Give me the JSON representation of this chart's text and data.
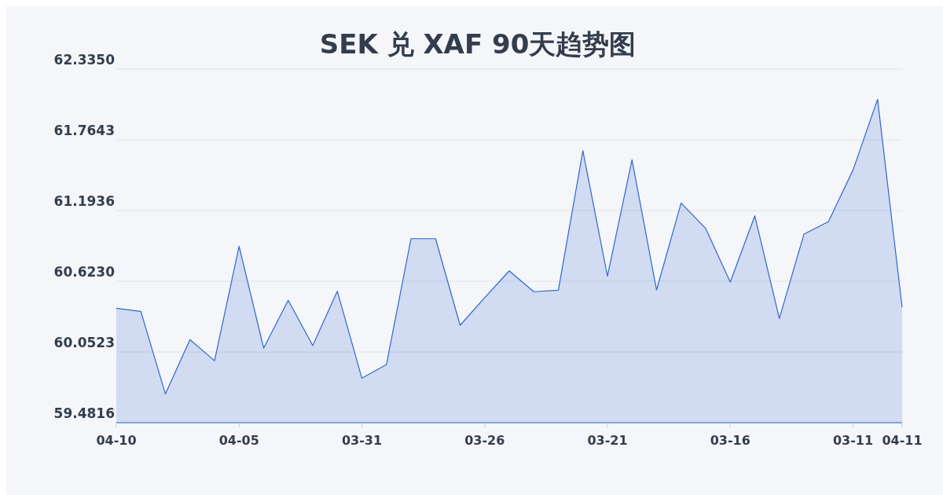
{
  "chart_data": {
    "type": "area",
    "title": "SEK 兑 XAF 90天趋势图",
    "categories": [
      "04-10",
      null,
      null,
      null,
      null,
      "04-05",
      null,
      null,
      null,
      null,
      "03-31",
      null,
      null,
      null,
      null,
      "03-26",
      null,
      null,
      null,
      null,
      "03-21",
      null,
      null,
      null,
      null,
      "03-16",
      null,
      null,
      null,
      null,
      "03-11",
      null,
      "04-11"
    ],
    "series": [
      {
        "color": "#3366cc",
        "values": [
          60.405,
          60.38,
          59.714,
          60.152,
          59.982,
          60.906,
          60.084,
          60.469,
          60.105,
          60.543,
          59.841,
          59.951,
          60.967,
          60.967,
          60.268,
          60.49,
          60.707,
          60.539,
          60.551,
          61.676,
          60.665,
          61.604,
          60.553,
          61.255,
          61.05,
          60.617,
          61.151,
          60.323,
          61.003,
          61.105,
          61.521,
          62.092,
          60.412
        ]
      }
    ],
    "ylim": [
      59.4816,
      62.335
    ],
    "yticks": [
      {
        "value": 59.4816,
        "label": "59.4816"
      },
      {
        "value": 60.0523,
        "label": "60.0523"
      },
      {
        "value": 60.623,
        "label": "60.6230"
      },
      {
        "value": 61.1936,
        "label": "61.1936"
      },
      {
        "value": 61.7643,
        "label": "61.7643"
      },
      {
        "value": 62.335,
        "label": "62.3350"
      }
    ],
    "grid": "y"
  }
}
